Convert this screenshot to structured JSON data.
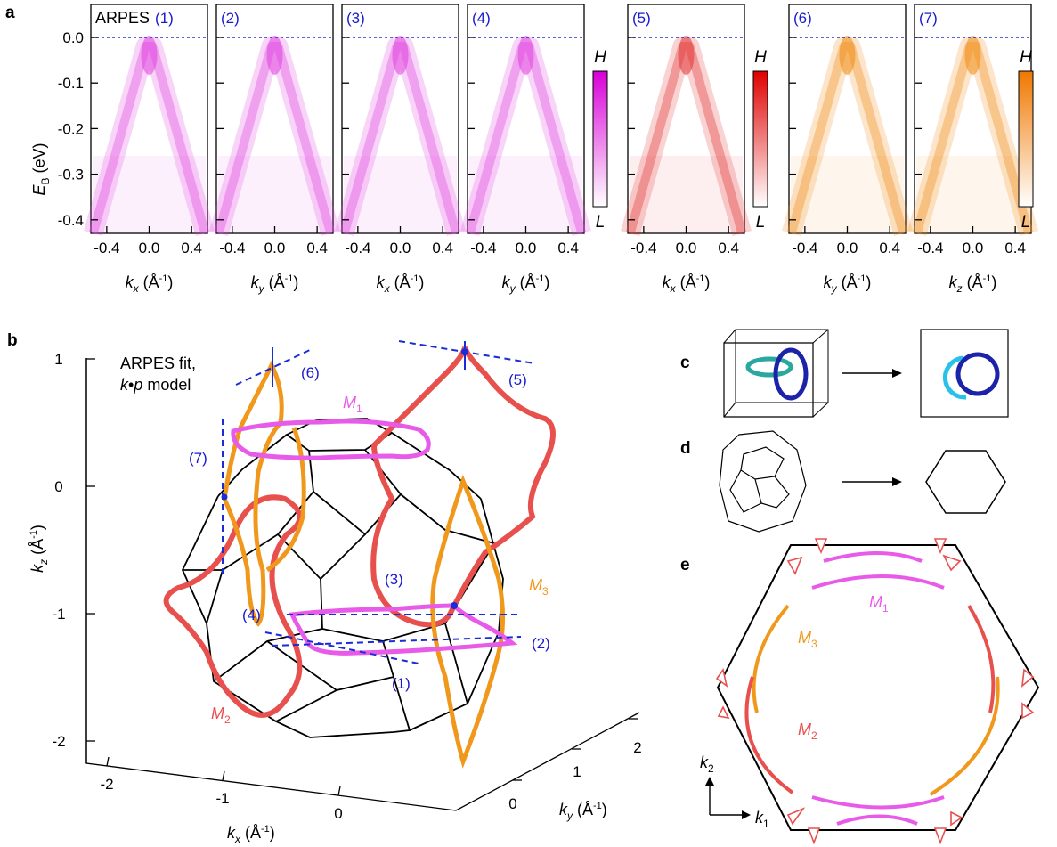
{
  "panel_letters": {
    "a": "a",
    "b": "b",
    "c": "c",
    "d": "d",
    "e": "e"
  },
  "panel_a": {
    "arpes_label": "ARPES",
    "ylabel_main": "E",
    "ylabel_sub": "B",
    "ylabel_unit": " (eV)",
    "yticks": [
      "0.0",
      "-0.1",
      "-0.2",
      "-0.3",
      "-0.4"
    ],
    "xticks": [
      "-0.4",
      "0.0",
      "0.4"
    ],
    "colorbar_high": "H",
    "colorbar_low": "L",
    "cuts": [
      {
        "num": "(1)",
        "k": "x",
        "color": "#e040e0"
      },
      {
        "num": "(2)",
        "k": "y",
        "color": "#e040e0"
      },
      {
        "num": "(3)",
        "k": "x",
        "color": "#e040e0"
      },
      {
        "num": "(4)",
        "k": "y",
        "color": "#e040e0"
      },
      {
        "num": "(5)",
        "k": "x",
        "color": "#e23232"
      },
      {
        "num": "(6)",
        "k": "y",
        "color": "#f08a10"
      },
      {
        "num": "(7)",
        "k": "z",
        "color": "#f08a10"
      }
    ],
    "xlabel_k": "k",
    "xlabel_unit": " (Å",
    "xlabel_exp": "-1",
    "xlabel_close": ")"
  },
  "panel_b": {
    "fit_line1": "ARPES fit,",
    "fit_line2_a": "k",
    "fit_line2_b": "•",
    "fit_line2_c": "p",
    "fit_line2_d": " model",
    "kz_ticks": [
      "1",
      "0",
      "-1",
      "-2"
    ],
    "kx_ticks": [
      "-2",
      "-1",
      "0"
    ],
    "ky_ticks": [
      "0",
      "1",
      "2"
    ],
    "kz_label": "k",
    "kz_sub": "z",
    "kx_label": "k",
    "kx_sub": "x",
    "ky_label": "k",
    "ky_sub": "y",
    "axis_unit": " (Å",
    "axis_exp": "-1",
    "axis_close": ")",
    "cut_labels": [
      "(1)",
      "(2)",
      "(3)",
      "(4)",
      "(5)",
      "(6)",
      "(7)"
    ],
    "loops": [
      {
        "name": "M",
        "sub": "1",
        "color": "#e85ae8"
      },
      {
        "name": "M",
        "sub": "2",
        "color": "#e8504e"
      },
      {
        "name": "M",
        "sub": "3",
        "color": "#f0981c"
      }
    ]
  },
  "panel_e": {
    "k1": "k",
    "k1_sub": "1",
    "k2": "k",
    "k2_sub": "2",
    "loops": [
      {
        "name": "M",
        "sub": "1",
        "color": "#e85ae8"
      },
      {
        "name": "M",
        "sub": "3",
        "color": "#f0981c"
      },
      {
        "name": "M",
        "sub": "2",
        "color": "#e8504e"
      }
    ]
  },
  "colors": {
    "magenta": "#e040e0",
    "red": "#e23232",
    "orange": "#f08a10",
    "cut_blue": "#1a2bd8",
    "link_cyan": "#27c2e8",
    "link_navy": "#1c23a8"
  }
}
